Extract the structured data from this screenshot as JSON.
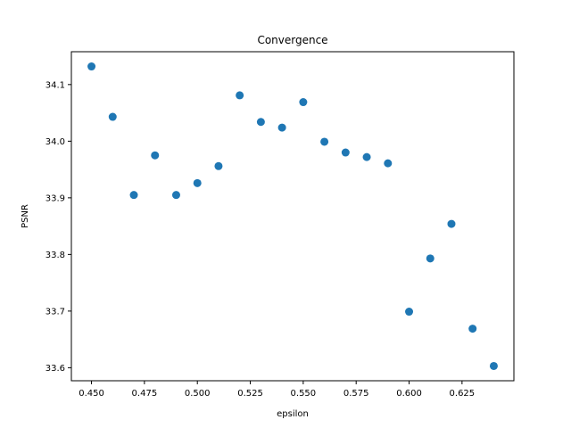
{
  "chart_data": {
    "type": "scatter",
    "title": "Convergence",
    "xlabel": "epsilon",
    "ylabel": "PSNR",
    "xlim": [
      0.4405,
      0.6495
    ],
    "ylim": [
      33.577,
      34.158
    ],
    "xticks": [
      0.45,
      0.475,
      0.5,
      0.525,
      0.55,
      0.575,
      0.6,
      0.625
    ],
    "xtick_labels": [
      "0.450",
      "0.475",
      "0.500",
      "0.525",
      "0.550",
      "0.575",
      "0.600",
      "0.625"
    ],
    "yticks": [
      33.6,
      33.7,
      33.8,
      33.9,
      34.0,
      34.1
    ],
    "ytick_labels": [
      "33.6",
      "33.7",
      "33.8",
      "33.9",
      "34.0",
      "34.1"
    ],
    "grid": false,
    "color": "#1f77b4",
    "series": [
      {
        "x": [
          0.45,
          0.46,
          0.47,
          0.48,
          0.49,
          0.5,
          0.51,
          0.52,
          0.53,
          0.54,
          0.55,
          0.56,
          0.57,
          0.58,
          0.59,
          0.6,
          0.61,
          0.62,
          0.63,
          0.64
        ],
        "y": [
          34.132,
          34.043,
          33.905,
          33.975,
          33.905,
          33.926,
          33.956,
          34.081,
          34.034,
          34.024,
          34.069,
          33.999,
          33.98,
          33.972,
          33.961,
          33.699,
          33.793,
          33.854,
          33.669,
          33.603
        ]
      }
    ]
  }
}
